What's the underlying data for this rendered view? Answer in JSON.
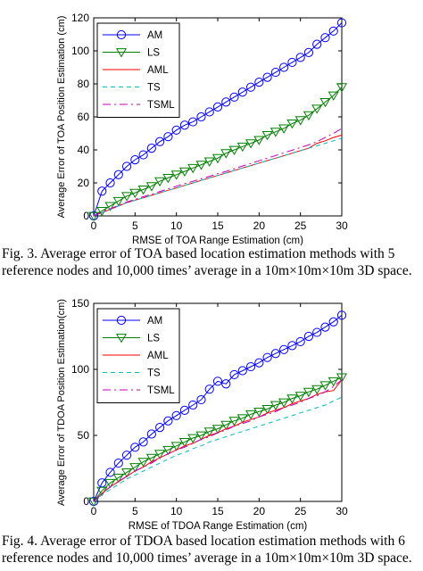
{
  "chart_data": [
    {
      "type": "line",
      "xlabel": "RMSE of TOA Range Estimation (cm)",
      "ylabel": "Average Error of TOA Position Estimation (cm)",
      "xlim": [
        0,
        30
      ],
      "ylim": [
        0,
        120
      ],
      "xticks": [
        "0",
        "5",
        "10",
        "15",
        "20",
        "25",
        "30"
      ],
      "yticks": [
        "0",
        "20",
        "40",
        "60",
        "80",
        "100",
        "120"
      ],
      "grid": false,
      "legend_position": "top-left",
      "x": [
        0,
        1,
        2,
        3,
        4,
        5,
        6,
        7,
        8,
        9,
        10,
        11,
        12,
        13,
        14,
        15,
        16,
        17,
        18,
        19,
        20,
        21,
        22,
        23,
        24,
        25,
        26,
        27,
        28,
        29,
        30
      ],
      "series": [
        {
          "name": "AM",
          "color": "#0000ff",
          "marker": "circle",
          "dash": "solid",
          "values": [
            0,
            15,
            20,
            25,
            30,
            34,
            37,
            41,
            45,
            48,
            52,
            55,
            57,
            60,
            63,
            66,
            69,
            72,
            75,
            78,
            81,
            84,
            87,
            90,
            93,
            96,
            99,
            104,
            108,
            112,
            117
          ]
        },
        {
          "name": "LS",
          "color": "#008000",
          "marker": "triangle-down",
          "dash": "solid",
          "values": [
            0,
            3,
            6,
            9,
            12,
            14,
            16,
            18,
            21,
            23,
            25,
            27,
            29,
            31,
            33,
            35,
            38,
            40,
            42,
            44,
            46,
            49,
            51,
            53,
            56,
            58,
            61,
            65,
            69,
            73,
            78
          ]
        },
        {
          "name": "AML",
          "color": "#ff0000",
          "marker": "none",
          "dash": "solid",
          "values": [
            0,
            2,
            4,
            6,
            8,
            9.5,
            11,
            12.5,
            14,
            15.5,
            17,
            18.5,
            20,
            21.5,
            23,
            24.5,
            26,
            27.5,
            29,
            30.5,
            32,
            33.5,
            35,
            36.5,
            38,
            39.5,
            41,
            44,
            45.5,
            47.5,
            49
          ]
        },
        {
          "name": "TS",
          "color": "#00bfbf",
          "marker": "none",
          "dash": "dashed",
          "values": [
            0,
            2,
            4,
            6,
            8,
            9.5,
            11,
            12.5,
            14,
            15.5,
            17,
            18.5,
            20,
            21.5,
            23,
            24.5,
            26,
            27.5,
            29,
            30.5,
            32,
            33.5,
            35,
            36.5,
            38,
            39.5,
            41,
            42.5,
            44,
            45.5,
            47
          ]
        },
        {
          "name": "TSML",
          "color": "#bf00bf",
          "marker": "none",
          "dash": "dashdot",
          "values": [
            0,
            2.2,
            4.3,
            6.4,
            8.4,
            10,
            11.6,
            13.2,
            14.8,
            16.4,
            18,
            19.5,
            21,
            22.5,
            24,
            25.5,
            27,
            28.6,
            30.2,
            31.8,
            33.4,
            35,
            36.6,
            38.2,
            39.8,
            41.4,
            43,
            45,
            47.5,
            50,
            53
          ]
        }
      ]
    },
    {
      "type": "line",
      "xlabel": "RMSE of TDOA Range Estimation (cm)",
      "ylabel": "Average Error of TDOA Position Estimation(cm)",
      "xlim": [
        0,
        30
      ],
      "ylim": [
        0,
        150
      ],
      "xticks": [
        "0",
        "5",
        "10",
        "15",
        "20",
        "25",
        "30"
      ],
      "yticks": [
        "0",
        "50",
        "100",
        "150"
      ],
      "grid": false,
      "legend_position": "top-left",
      "x": [
        0,
        1,
        2,
        3,
        4,
        5,
        6,
        7,
        8,
        9,
        10,
        11,
        12,
        13,
        14,
        15,
        16,
        17,
        18,
        19,
        20,
        21,
        22,
        23,
        24,
        25,
        26,
        27,
        28,
        29,
        30
      ],
      "series": [
        {
          "name": "AM",
          "color": "#0000ff",
          "marker": "circle",
          "dash": "solid",
          "values": [
            0,
            14,
            22,
            29,
            35,
            41,
            45,
            51,
            56,
            61,
            65,
            69,
            73,
            77,
            85,
            91,
            89,
            96,
            99,
            102,
            105,
            109,
            112,
            115,
            118,
            121,
            125,
            128,
            132,
            136,
            141
          ]
        },
        {
          "name": "LS",
          "color": "#008000",
          "marker": "triangle-down",
          "dash": "solid",
          "values": [
            0,
            8,
            14,
            18,
            22,
            26,
            30,
            33,
            36,
            39,
            42,
            45,
            48,
            50,
            53,
            55,
            58,
            61,
            63,
            66,
            68,
            70,
            73,
            75,
            78,
            80,
            83,
            85,
            88,
            91,
            94
          ]
        },
        {
          "name": "AML",
          "color": "#ff0000",
          "marker": "none",
          "dash": "solid",
          "values": [
            0,
            6,
            11,
            15,
            19,
            23,
            26,
            30,
            33,
            36,
            39,
            42,
            44,
            47,
            50,
            52,
            55,
            57,
            60,
            62,
            64,
            67,
            69,
            71,
            74,
            76,
            78,
            81,
            83,
            84,
            92
          ]
        },
        {
          "name": "TS",
          "color": "#00bfbf",
          "marker": "none",
          "dash": "dashed",
          "values": [
            0,
            5,
            9,
            13,
            17,
            20,
            23,
            26,
            29,
            32,
            35,
            37,
            40,
            42,
            45,
            47,
            49,
            51,
            53,
            55,
            57,
            59,
            61,
            63,
            65,
            67,
            69,
            71,
            73,
            76,
            79
          ]
        },
        {
          "name": "TSML",
          "color": "#bf00bf",
          "marker": "none",
          "dash": "dashdot",
          "values": [
            0,
            6,
            11,
            15,
            19,
            23,
            26,
            29,
            33,
            36,
            39,
            41,
            44,
            47,
            49,
            52,
            54,
            57,
            59,
            61,
            64,
            66,
            68,
            71,
            73,
            75,
            78,
            80,
            83,
            87,
            92
          ]
        }
      ]
    }
  ],
  "captions": [
    "Fig. 3.   Average error of TOA based location estimation methods with 5",
    "reference nodes and 10,000 times’ average in a 10m×10m×10m 3D space.",
    "Fig. 4.   Average error of TDOA based location estimation methods with 6",
    "reference nodes and 10,000 times’ average in a 10m×10m×10m 3D space."
  ]
}
